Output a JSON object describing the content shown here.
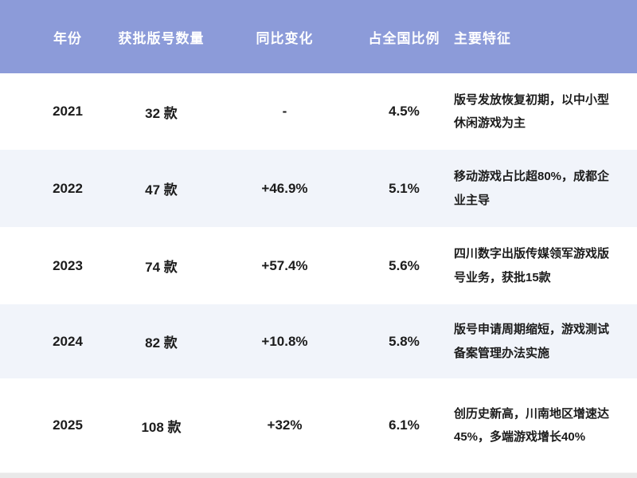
{
  "chart_data": {
    "type": "table",
    "columns": [
      "年份",
      "获批版号数量",
      "同比变化",
      "占全国比例",
      "主要特征"
    ],
    "column_keys": [
      "year",
      "count",
      "change",
      "share",
      "features"
    ],
    "rows": [
      {
        "year": "2021",
        "count": "32 款",
        "change": "-",
        "share": "4.5%",
        "features": "版号发放恢复初期，以中小型休闲游戏为主"
      },
      {
        "year": "2022",
        "count": "47 款",
        "change": "+46.9%",
        "share": "5.1%",
        "features": "移动游戏占比超80%，成都企业主导"
      },
      {
        "year": "2023",
        "count": "74 款",
        "change": "+57.4%",
        "share": "5.6%",
        "features": "四川数字出版传媒领军游戏版号业务，获批15款"
      },
      {
        "year": "2024",
        "count": "82 款",
        "change": "+10.8%",
        "share": "5.8%",
        "features": "版号申请周期缩短，游戏测试备案管理办法实施"
      },
      {
        "year": "2025",
        "count": "108 款",
        "change": "+32%",
        "share": "6.1%",
        "features": "创历史新高，川南地区增速达45%，多端游戏增长40%"
      }
    ]
  },
  "colors": {
    "header_bg": "#8c9bd9",
    "header_text": "#ffffff",
    "alt_row_bg": "#f1f4fa",
    "body_text": "#1c1c1c",
    "footer_strip": "#e9e9e9"
  }
}
